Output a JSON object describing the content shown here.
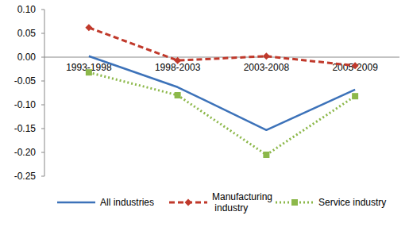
{
  "chart_data": {
    "type": "line",
    "categories": [
      "1993-1998",
      "1998-2003",
      "2003-2008",
      "2005-2009"
    ],
    "series": [
      {
        "name": "All industries",
        "color": "#3c72b9",
        "line_style": "solid",
        "marker": "none",
        "values": [
          0.002,
          -0.063,
          -0.153,
          -0.068
        ]
      },
      {
        "name": "Manufacturing industry",
        "color": "#c0392b",
        "line_style": "dashed",
        "marker": "diamond",
        "values": [
          0.062,
          -0.007,
          0.002,
          -0.018
        ]
      },
      {
        "name": "Service industry",
        "color": "#8cb84a",
        "line_style": "dotted",
        "marker": "square",
        "values": [
          -0.032,
          -0.08,
          -0.205,
          -0.082
        ]
      }
    ],
    "ylim": [
      -0.25,
      0.1
    ],
    "yticks": [
      {
        "value": 0.1,
        "label": "0.10"
      },
      0.05,
      {
        "value": 0,
        "label": "0.00"
      },
      -0.05,
      {
        "value": -0.1,
        "label": "-0.10"
      },
      -0.15,
      {
        "value": -0.2,
        "label": "-0.20"
      },
      -0.25
    ],
    "grid": false,
    "legend": "bottom"
  }
}
